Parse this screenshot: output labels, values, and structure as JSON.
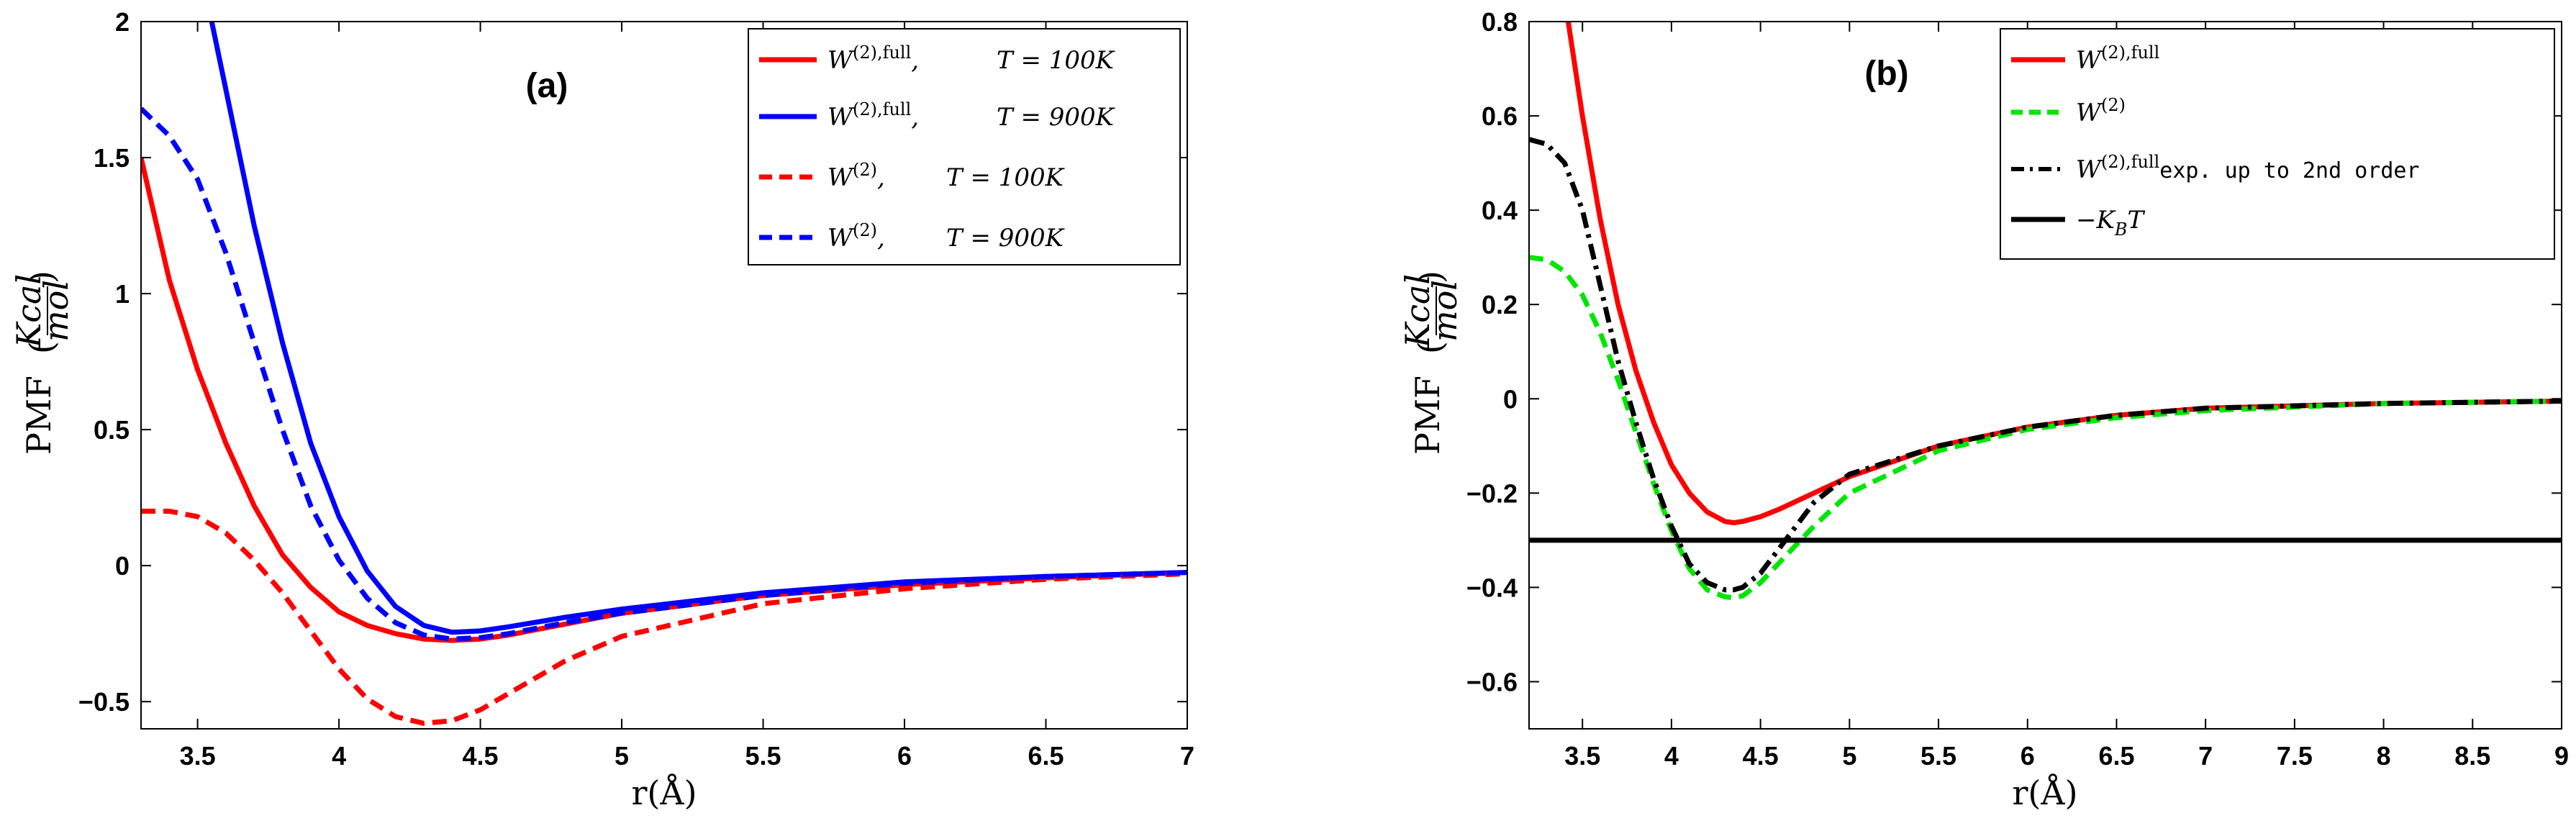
{
  "figure_title": "PMF comparison",
  "chart_data": [
    {
      "type": "line",
      "panel_label": "(a)",
      "xlabel": "r(Å)",
      "ylabel": "PMF (Kcal/mol)",
      "ylabel_main": "PMF",
      "ylabel_num": "Kcal",
      "ylabel_den": "mol",
      "xlim": [
        3.3,
        7
      ],
      "ylim": [
        -0.6,
        2
      ],
      "xticks": [
        3.5,
        4,
        4.5,
        5,
        5.5,
        6,
        6.5,
        7
      ],
      "xtick_labels": [
        "3.5",
        "4",
        "4.5",
        "5",
        "5.5",
        "6",
        "6.5",
        "7"
      ],
      "yticks": [
        -0.5,
        0,
        0.5,
        1,
        1.5,
        2
      ],
      "ytick_labels": [
        "−0.5",
        "0",
        "0.5",
        "1",
        "1.5",
        "2"
      ],
      "grid": false,
      "legend_position": "top-right",
      "series": [
        {
          "name": "W(2),full, T = 100K",
          "color": "#ff0000",
          "dash": "solid",
          "x": [
            3.3,
            3.4,
            3.5,
            3.6,
            3.7,
            3.8,
            3.9,
            4.0,
            4.1,
            4.2,
            4.3,
            4.4,
            4.5,
            4.6,
            4.7,
            4.8,
            5.0,
            5.5,
            6.0,
            6.5,
            7.0
          ],
          "y": [
            1.5,
            1.05,
            0.72,
            0.45,
            0.22,
            0.04,
            -0.08,
            -0.17,
            -0.22,
            -0.25,
            -0.27,
            -0.275,
            -0.27,
            -0.255,
            -0.235,
            -0.215,
            -0.175,
            -0.11,
            -0.07,
            -0.045,
            -0.025
          ]
        },
        {
          "name": "W(2),full, T = 900K",
          "color": "#0000ff",
          "dash": "solid",
          "x": [
            3.55,
            3.6,
            3.7,
            3.8,
            3.9,
            4.0,
            4.1,
            4.2,
            4.3,
            4.4,
            4.5,
            4.6,
            4.8,
            5.0,
            5.5,
            6.0,
            6.5,
            7.0
          ],
          "y": [
            2.0,
            1.75,
            1.25,
            0.82,
            0.45,
            0.18,
            -0.02,
            -0.15,
            -0.22,
            -0.245,
            -0.24,
            -0.225,
            -0.19,
            -0.16,
            -0.1,
            -0.06,
            -0.04,
            -0.025
          ]
        },
        {
          "name": "W(2), T = 100K",
          "color": "#ff0000",
          "dash": "dashed",
          "x": [
            3.3,
            3.4,
            3.5,
            3.6,
            3.7,
            3.8,
            3.9,
            4.0,
            4.1,
            4.2,
            4.3,
            4.4,
            4.5,
            4.6,
            4.7,
            4.8,
            5.0,
            5.5,
            6.0,
            6.5,
            7.0
          ],
          "y": [
            0.2,
            0.2,
            0.18,
            0.12,
            0.02,
            -0.1,
            -0.24,
            -0.38,
            -0.49,
            -0.555,
            -0.58,
            -0.57,
            -0.53,
            -0.47,
            -0.41,
            -0.35,
            -0.26,
            -0.14,
            -0.085,
            -0.05,
            -0.03
          ]
        },
        {
          "name": "W(2), T = 900K",
          "color": "#0000ff",
          "dash": "dashed",
          "x": [
            3.3,
            3.4,
            3.5,
            3.6,
            3.7,
            3.8,
            3.9,
            4.0,
            4.1,
            4.2,
            4.3,
            4.4,
            4.5,
            4.6,
            4.8,
            5.0,
            5.5,
            6.0,
            6.5,
            7.0
          ],
          "y": [
            1.68,
            1.58,
            1.42,
            1.15,
            0.82,
            0.5,
            0.22,
            0.02,
            -0.12,
            -0.21,
            -0.255,
            -0.27,
            -0.265,
            -0.25,
            -0.21,
            -0.175,
            -0.11,
            -0.065,
            -0.04,
            -0.025
          ]
        }
      ],
      "legend": [
        {
          "base": "W",
          "sup": "(2),full",
          "temp": "T = 100K"
        },
        {
          "base": "W",
          "sup": "(2),full",
          "temp": "T = 900K"
        },
        {
          "base": "W",
          "sup": "(2)",
          "temp": "T = 100K"
        },
        {
          "base": "W",
          "sup": "(2)",
          "temp": "T = 900K"
        }
      ]
    },
    {
      "type": "line",
      "panel_label": "(b)",
      "xlabel": "r(Å)",
      "ylabel": "PMF (Kcal/mol)",
      "ylabel_main": "PMF",
      "ylabel_num": "Kcal",
      "ylabel_den": "mol",
      "xlim": [
        3.2,
        9
      ],
      "ylim": [
        -0.7,
        0.8
      ],
      "xticks": [
        3.5,
        4,
        4.5,
        5,
        5.5,
        6,
        6.5,
        7,
        7.5,
        8,
        8.5,
        9
      ],
      "xtick_labels": [
        "3.5",
        "4",
        "4.5",
        "5",
        "5.5",
        "6",
        "6.5",
        "7",
        "7.5",
        "8",
        "8.5",
        "9"
      ],
      "yticks": [
        -0.6,
        -0.4,
        -0.2,
        0,
        0.2,
        0.4,
        0.6,
        0.8
      ],
      "ytick_labels": [
        "−0.6",
        "−0.4",
        "−0.2",
        "0",
        "0.2",
        "0.4",
        "0.6",
        "0.8"
      ],
      "grid": false,
      "legend_position": "top-right",
      "series": [
        {
          "name": "W(2),full",
          "color": "#ff0000",
          "dash": "solid",
          "x": [
            3.42,
            3.5,
            3.6,
            3.7,
            3.8,
            3.9,
            4.0,
            4.1,
            4.2,
            4.3,
            4.35,
            4.4,
            4.5,
            4.6,
            4.8,
            5.0,
            5.5,
            6.0,
            6.5,
            7.0,
            8.0,
            9.0
          ],
          "y": [
            0.8,
            0.6,
            0.38,
            0.2,
            0.06,
            -0.05,
            -0.14,
            -0.2,
            -0.24,
            -0.26,
            -0.263,
            -0.26,
            -0.25,
            -0.235,
            -0.2,
            -0.165,
            -0.1,
            -0.06,
            -0.035,
            -0.02,
            -0.01,
            -0.005
          ]
        },
        {
          "name": "W(2)",
          "color": "#00e600",
          "dash": "dashed",
          "x": [
            3.2,
            3.3,
            3.4,
            3.5,
            3.6,
            3.7,
            3.8,
            3.9,
            4.0,
            4.1,
            4.2,
            4.3,
            4.35,
            4.4,
            4.5,
            4.6,
            4.7,
            4.8,
            5.0,
            5.5,
            6.0,
            6.5,
            7.0,
            8.0,
            9.0
          ],
          "y": [
            0.3,
            0.295,
            0.27,
            0.22,
            0.14,
            0.04,
            -0.07,
            -0.18,
            -0.28,
            -0.36,
            -0.405,
            -0.42,
            -0.422,
            -0.418,
            -0.39,
            -0.35,
            -0.31,
            -0.27,
            -0.2,
            -0.11,
            -0.065,
            -0.04,
            -0.025,
            -0.01,
            -0.005
          ]
        },
        {
          "name": "W(2),full exp. up to 2nd order",
          "color": "#000000",
          "dash": "dashdot",
          "x": [
            3.2,
            3.3,
            3.4,
            3.5,
            3.6,
            3.7,
            3.8,
            3.9,
            4.0,
            4.1,
            4.2,
            4.3,
            4.35,
            4.4,
            4.5,
            4.6,
            4.7,
            4.8,
            5.0,
            5.5,
            6.0,
            6.5,
            7.0,
            8.0,
            9.0
          ],
          "y": [
            0.55,
            0.54,
            0.5,
            0.4,
            0.24,
            0.08,
            -0.05,
            -0.17,
            -0.27,
            -0.35,
            -0.39,
            -0.405,
            -0.405,
            -0.4,
            -0.37,
            -0.32,
            -0.27,
            -0.22,
            -0.16,
            -0.1,
            -0.06,
            -0.035,
            -0.02,
            -0.01,
            -0.005
          ]
        },
        {
          "name": "−KBT",
          "color": "#000000",
          "dash": "solid",
          "x": [
            3.2,
            9.0
          ],
          "y": [
            -0.3,
            -0.3
          ]
        }
      ],
      "legend": [
        {
          "base": "W",
          "sup": "(2),full",
          "extra": ""
        },
        {
          "base": "W",
          "sup": "(2)",
          "extra": ""
        },
        {
          "base": "W",
          "sup": "(2),full",
          "extra": "exp. up to 2nd order"
        },
        {
          "base": "−K",
          "sup": "",
          "sub": "B",
          "extra": "T"
        }
      ]
    }
  ]
}
